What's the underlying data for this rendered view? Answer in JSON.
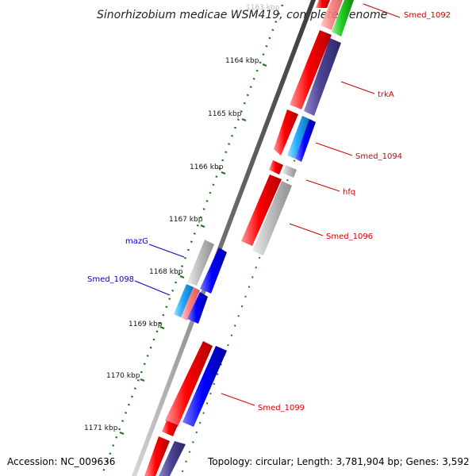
{
  "title": "Sinorhizobium medicae WSM419, complete genome",
  "footer": {
    "accession": "Accession: NC_009636",
    "summary": "Topology: circular; Length: 3,781,904 bp; Genes: 3,592"
  },
  "ticks": {
    "t1163": "1163 kbp",
    "t1164": "1164 kbp",
    "t1165": "1165 kbp",
    "t1166": "1166 kbp",
    "t1167": "1167 kbp",
    "t1168": "1168 kbp",
    "t1169": "1169 kbp",
    "t1170": "1170 kbp",
    "t1171": "1171 kbp"
  },
  "genes": {
    "smed_1092": "Smed_1092",
    "trka": "trkA",
    "smed_1094": "Smed_1094",
    "hfq": "hfq",
    "smed_1096": "Smed_1096",
    "mazg": "mazG",
    "smed_1098": "Smed_1098",
    "smed_1099": "Smed_1099"
  },
  "colors": {
    "cds_red": "#ff0000",
    "gene_blue": "#0000ff",
    "gene_navy": "#4b4494",
    "gene_grey": "#b8b8b8",
    "gene_green": "#22cc22",
    "gene_cyan": "#22aaff",
    "gene_pink": "#ff8080",
    "backbone": "#777777",
    "tick_green": "#1a7a1a",
    "label_right": "#d00000",
    "label_left": "#0000c0"
  }
}
